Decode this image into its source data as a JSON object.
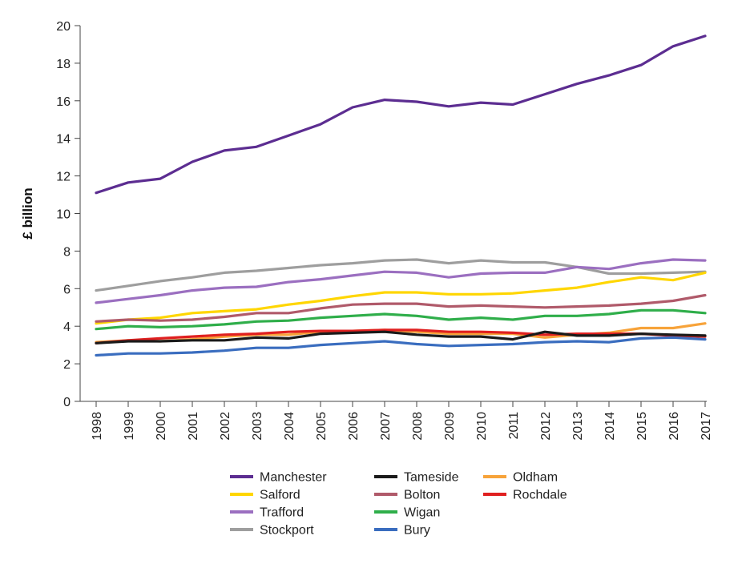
{
  "chart_data": {
    "type": "line",
    "title": "",
    "xlabel": "",
    "ylabel": "£ billion",
    "ylim": [
      0,
      20
    ],
    "yticks": [
      0,
      2,
      4,
      6,
      8,
      10,
      12,
      14,
      16,
      18,
      20
    ],
    "grid": false,
    "legend_position": "bottom",
    "x": [
      "1998",
      "1999",
      "2000",
      "2001",
      "2002",
      "2003",
      "2004",
      "2005",
      "2006",
      "2007",
      "2008",
      "2009",
      "2010",
      "2011",
      "2012",
      "2013",
      "2014",
      "2015",
      "2016",
      "2017"
    ],
    "series": [
      {
        "name": "Manchester",
        "color": "#5c2d91",
        "values": [
          11.1,
          11.65,
          11.85,
          12.75,
          13.35,
          13.55,
          14.15,
          14.75,
          15.65,
          16.05,
          15.95,
          15.7,
          15.9,
          15.8,
          16.35,
          16.9,
          17.35,
          17.9,
          18.9,
          19.45
        ]
      },
      {
        "name": "Salford",
        "color": "#ffd600",
        "values": [
          4.15,
          4.35,
          4.45,
          4.7,
          4.8,
          4.9,
          5.15,
          5.35,
          5.6,
          5.8,
          5.8,
          5.7,
          5.7,
          5.75,
          5.9,
          6.05,
          6.35,
          6.6,
          6.45,
          6.85
        ]
      },
      {
        "name": "Trafford",
        "color": "#9b6fc0",
        "values": [
          5.25,
          5.45,
          5.65,
          5.9,
          6.05,
          6.1,
          6.35,
          6.5,
          6.7,
          6.9,
          6.85,
          6.6,
          6.8,
          6.85,
          6.85,
          7.15,
          7.05,
          7.35,
          7.55,
          7.5
        ]
      },
      {
        "name": "Stockport",
        "color": "#9e9e9e",
        "values": [
          5.9,
          6.15,
          6.4,
          6.6,
          6.85,
          6.95,
          7.1,
          7.25,
          7.35,
          7.5,
          7.55,
          7.35,
          7.5,
          7.4,
          7.4,
          7.15,
          6.8,
          6.8,
          6.85,
          6.9
        ]
      },
      {
        "name": "Tameside",
        "color": "#1a1a1a",
        "values": [
          3.1,
          3.2,
          3.2,
          3.25,
          3.25,
          3.4,
          3.35,
          3.6,
          3.65,
          3.7,
          3.55,
          3.45,
          3.45,
          3.3,
          3.7,
          3.5,
          3.5,
          3.6,
          3.55,
          3.5
        ]
      },
      {
        "name": "Bolton",
        "color": "#b05a6a",
        "values": [
          4.25,
          4.35,
          4.3,
          4.35,
          4.5,
          4.7,
          4.7,
          4.95,
          5.15,
          5.2,
          5.2,
          5.05,
          5.1,
          5.05,
          5.0,
          5.05,
          5.1,
          5.2,
          5.35,
          5.65
        ]
      },
      {
        "name": "Wigan",
        "color": "#2fae4a",
        "values": [
          3.85,
          4.0,
          3.95,
          4.0,
          4.1,
          4.25,
          4.3,
          4.45,
          4.55,
          4.65,
          4.55,
          4.35,
          4.45,
          4.35,
          4.55,
          4.55,
          4.65,
          4.85,
          4.85,
          4.7
        ]
      },
      {
        "name": "Bury",
        "color": "#3a6dbf",
        "values": [
          2.45,
          2.55,
          2.55,
          2.6,
          2.7,
          2.85,
          2.85,
          3.0,
          3.1,
          3.2,
          3.05,
          2.95,
          3.0,
          3.05,
          3.15,
          3.2,
          3.15,
          3.35,
          3.4,
          3.3
        ]
      },
      {
        "name": "Oldham",
        "color": "#f7a33a",
        "values": [
          3.15,
          3.25,
          3.2,
          3.3,
          3.45,
          3.55,
          3.55,
          3.7,
          3.75,
          3.8,
          3.7,
          3.6,
          3.6,
          3.6,
          3.4,
          3.55,
          3.65,
          3.9,
          3.9,
          4.15
        ]
      },
      {
        "name": "Rochdale",
        "color": "#e02020",
        "values": [
          3.1,
          3.25,
          3.35,
          3.45,
          3.55,
          3.6,
          3.7,
          3.75,
          3.75,
          3.8,
          3.8,
          3.7,
          3.7,
          3.65,
          3.55,
          3.6,
          3.6,
          3.6,
          3.5,
          3.45
        ]
      }
    ],
    "legend_columns": [
      [
        "Manchester",
        "Salford",
        "Trafford",
        "Stockport"
      ],
      [
        "Tameside",
        "Bolton",
        "Wigan",
        "Bury"
      ],
      [
        "Oldham",
        "Rochdale"
      ]
    ]
  }
}
